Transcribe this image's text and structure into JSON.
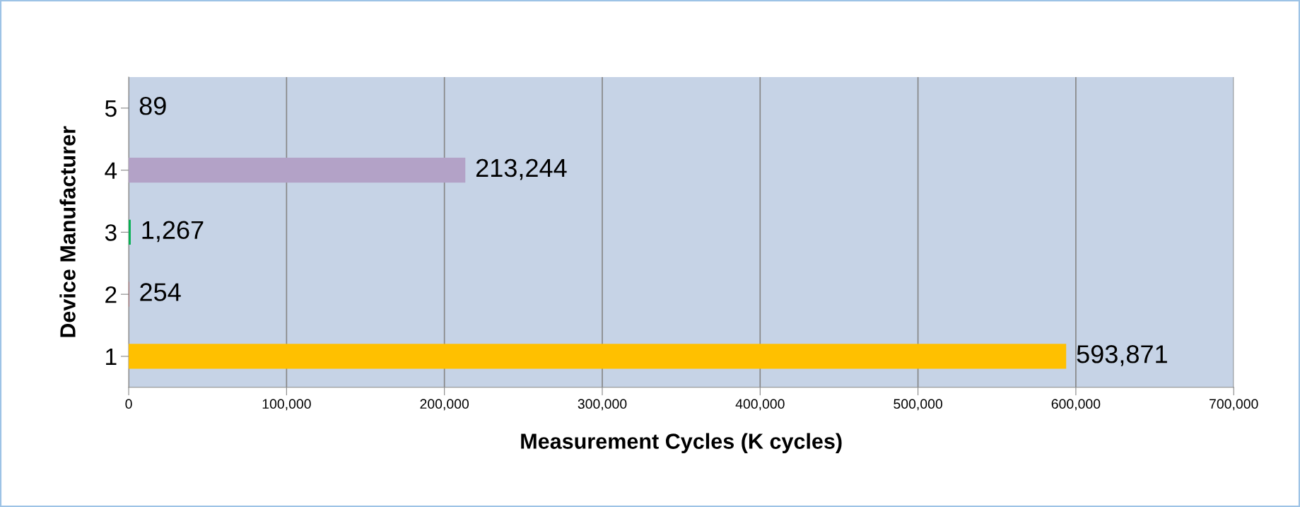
{
  "chart_data": {
    "type": "bar",
    "orientation": "horizontal",
    "xlabel": "Measurement Cycles (K cycles)",
    "ylabel": "Device Manufacturer",
    "categories": [
      "5",
      "4",
      "3",
      "2",
      "1"
    ],
    "values": [
      89,
      213244,
      1267,
      254,
      593871
    ],
    "colors": [
      "#4f81bd",
      "#b3a2c7",
      "#00b050",
      "#c0504d",
      "#ffc000"
    ],
    "value_labels": [
      "89",
      "213,244",
      "1,267",
      "254",
      "593,871"
    ],
    "xlim": [
      0,
      700000
    ],
    "xticks": [
      0,
      {
        "value": 100000,
        "label": "100,000"
      },
      {
        "value": 200000,
        "label": "200,000"
      },
      {
        "value": 300000,
        "label": "300,000"
      },
      {
        "value": 400000,
        "label": "400,000"
      },
      {
        "value": 500000,
        "label": "500,000"
      },
      {
        "value": 600000,
        "label": "600,000"
      },
      {
        "value": 700000,
        "label": "700,000"
      }
    ],
    "grid": "x",
    "legend": false
  }
}
